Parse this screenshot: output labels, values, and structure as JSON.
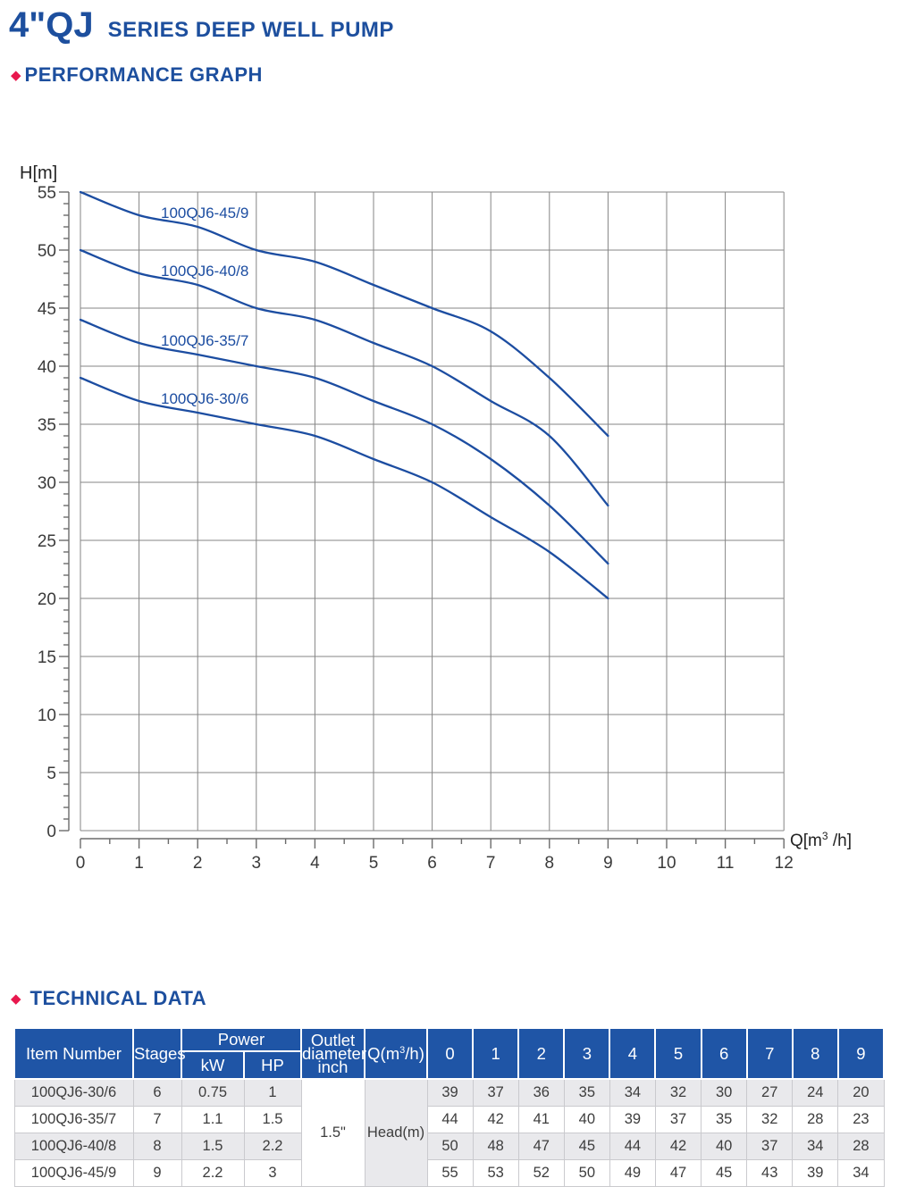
{
  "header": {
    "title_main": "4\"QJ",
    "title_sub": "SERIES DEEP WELL PUMP"
  },
  "icons": {
    "diamond": "◆"
  },
  "sections": {
    "performance": "PERFORMANCE GRAPH",
    "technical": "TECHNICAL DATA"
  },
  "colors": {
    "brand_blue": "#1d4f9e",
    "curve_blue": "#1c4da1",
    "table_header_blue": "#1f55a6",
    "accent_red": "#e8184e",
    "grid_gray": "#858585",
    "axis_gray": "#6b6b6b",
    "tick_text": "#3a3a3a",
    "row_alt_gray": "#e9e9ec"
  },
  "chart_data": {
    "type": "line",
    "title": "PERFORMANCE GRAPH",
    "ylabel": "H[m]",
    "xlabel_parts": {
      "prefix": "Q[m",
      "sup": "3",
      "suffix": " /h]"
    },
    "x": [
      0,
      1,
      2,
      3,
      4,
      5,
      6,
      7,
      8,
      9
    ],
    "series": [
      {
        "name": "100QJ6-45/9",
        "values": [
          55,
          53,
          52,
          50,
          49,
          47,
          45,
          43,
          39,
          34
        ]
      },
      {
        "name": "100QJ6-40/8",
        "values": [
          50,
          48,
          47,
          45,
          44,
          42,
          40,
          37,
          34,
          28
        ]
      },
      {
        "name": "100QJ6-35/7",
        "values": [
          44,
          42,
          41,
          40,
          39,
          37,
          35,
          32,
          28,
          23
        ]
      },
      {
        "name": "100QJ6-30/6",
        "values": [
          39,
          37,
          36,
          35,
          34,
          32,
          30,
          27,
          24,
          20
        ]
      }
    ],
    "xlim": [
      0,
      12
    ],
    "ylim": [
      0,
      55
    ],
    "x_tick_major": 1,
    "x_tick_minor": 0.5,
    "y_tick_major": 5,
    "y_tick_minor": 1,
    "grid": true,
    "legend": "inline-labels-on-curves"
  },
  "table": {
    "header": {
      "item_number": "Item Number",
      "stages": "Stages",
      "power": "Power",
      "kw": "kW",
      "hp": "HP",
      "outlet_lines": [
        "Outlet",
        "diameter",
        "inch"
      ],
      "q_parts": {
        "prefix": "Q(m",
        "sup": "3",
        "suffix": "/h)"
      },
      "flow_cols": [
        "0",
        "1",
        "2",
        "3",
        "4",
        "5",
        "6",
        "7",
        "8",
        "9"
      ]
    },
    "merged": {
      "outlet_value": "1.5\"",
      "head_label": "Head(m)"
    },
    "rows": [
      {
        "item": "100QJ6-30/6",
        "stages": "6",
        "kw": "0.75",
        "hp": "1",
        "heads": [
          "39",
          "37",
          "36",
          "35",
          "34",
          "32",
          "30",
          "27",
          "24",
          "20"
        ]
      },
      {
        "item": "100QJ6-35/7",
        "stages": "7",
        "kw": "1.1",
        "hp": "1.5",
        "heads": [
          "44",
          "42",
          "41",
          "40",
          "39",
          "37",
          "35",
          "32",
          "28",
          "23"
        ]
      },
      {
        "item": "100QJ6-40/8",
        "stages": "8",
        "kw": "1.5",
        "hp": "2.2",
        "heads": [
          "50",
          "48",
          "47",
          "45",
          "44",
          "42",
          "40",
          "37",
          "34",
          "28"
        ]
      },
      {
        "item": "100QJ6-45/9",
        "stages": "9",
        "kw": "2.2",
        "hp": "3",
        "heads": [
          "55",
          "53",
          "52",
          "50",
          "49",
          "47",
          "45",
          "43",
          "39",
          "34"
        ]
      }
    ]
  }
}
